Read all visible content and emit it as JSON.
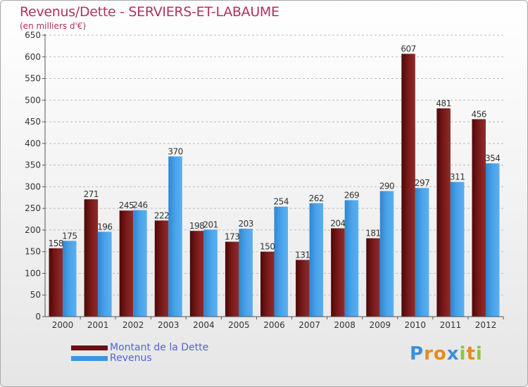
{
  "chart_data": {
    "type": "bar",
    "title": "Revenus/Dette - SERVIERS-ET-LABAUME",
    "subtitle": "(en milliers d'€)",
    "categories": [
      "2000",
      "2001",
      "2002",
      "2003",
      "2004",
      "2005",
      "2006",
      "2007",
      "2008",
      "2009",
      "2010",
      "2011",
      "2012"
    ],
    "series": [
      {
        "name": "Montant de la Dette",
        "color": "#7a1a1a",
        "values": [
          158,
          271,
          245,
          222,
          198,
          173,
          150,
          131,
          204,
          181,
          607,
          481,
          456
        ]
      },
      {
        "name": "Revenus",
        "color": "#3c96e0",
        "values": [
          175,
          196,
          246,
          370,
          201,
          203,
          254,
          262,
          269,
          290,
          297,
          311,
          354
        ]
      }
    ],
    "ylim": [
      0,
      650
    ],
    "yticks": [
      0,
      50,
      100,
      150,
      200,
      250,
      300,
      350,
      400,
      450,
      500,
      550,
      600,
      650
    ],
    "grid": true,
    "legend_position": "bottom-left"
  },
  "logo": {
    "letters": [
      "P",
      "r",
      "o",
      "x",
      "i",
      "t",
      "i"
    ],
    "colors": [
      "#3c8fd8",
      "#e8891b",
      "#e8891b",
      "#3c8fd8",
      "#8cc63f",
      "#e8891b",
      "#8cc63f"
    ]
  }
}
